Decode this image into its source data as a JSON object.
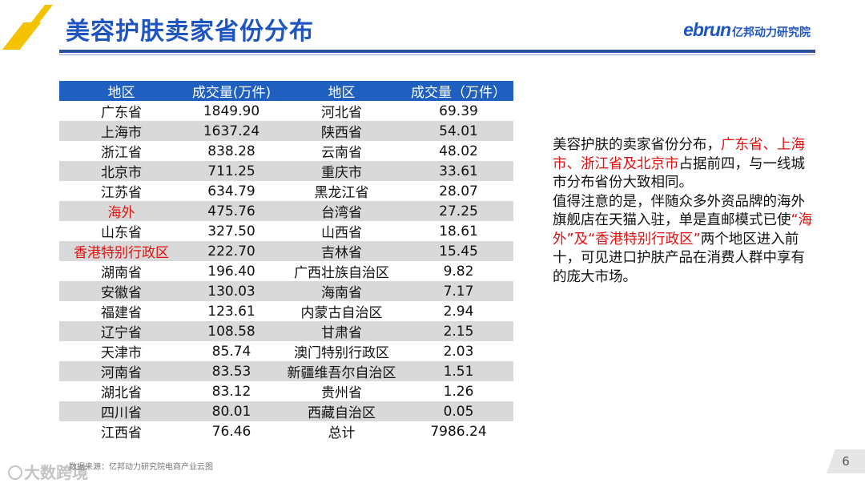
{
  "header": {
    "title": "美容护肤卖家省份分布",
    "logo_brand": "ebrun",
    "logo_cn": "亿邦动力研究院"
  },
  "table": {
    "columns": [
      "地区",
      "成交量(万件)",
      "地区",
      "成交量（万件）"
    ],
    "rows": [
      {
        "region_left": "广东省",
        "value_left": "1849.90",
        "region_right": "河北省",
        "value_right": "69.39"
      },
      {
        "region_left": "上海市",
        "value_left": "1637.24",
        "region_right": "陕西省",
        "value_right": "54.01"
      },
      {
        "region_left": "浙江省",
        "value_left": "838.28",
        "region_right": "云南省",
        "value_right": "48.02"
      },
      {
        "region_left": "北京市",
        "value_left": "711.25",
        "region_right": "重庆市",
        "value_right": "33.61"
      },
      {
        "region_left": "江苏省",
        "value_left": "634.79",
        "region_right": "黑龙江省",
        "value_right": "28.07"
      },
      {
        "region_left": "海外",
        "value_left": "475.76",
        "region_right": "台湾省",
        "value_right": "27.25",
        "highlight_left": true
      },
      {
        "region_left": "山东省",
        "value_left": "327.50",
        "region_right": "山西省",
        "value_right": "18.61"
      },
      {
        "region_left": "香港特别行政区",
        "value_left": "222.70",
        "region_right": "吉林省",
        "value_right": "15.45",
        "highlight_left": true
      },
      {
        "region_left": "湖南省",
        "value_left": "196.40",
        "region_right": "广西壮族自治区",
        "value_right": "9.82"
      },
      {
        "region_left": "安徽省",
        "value_left": "130.03",
        "region_right": "海南省",
        "value_right": "7.17"
      },
      {
        "region_left": "福建省",
        "value_left": "123.61",
        "region_right": "内蒙古自治区",
        "value_right": "2.94"
      },
      {
        "region_left": "辽宁省",
        "value_left": "108.58",
        "region_right": "甘肃省",
        "value_right": "2.15"
      },
      {
        "region_left": "天津市",
        "value_left": "85.74",
        "region_right": "澳门特别行政区",
        "value_right": "2.03"
      },
      {
        "region_left": "河南省",
        "value_left": "83.53",
        "region_right": "新疆维吾尔自治区",
        "value_right": "1.51"
      },
      {
        "region_left": "湖北省",
        "value_left": "83.12",
        "region_right": "贵州省",
        "value_right": "1.26"
      },
      {
        "region_left": "四川省",
        "value_left": "80.01",
        "region_right": "西藏自治区",
        "value_right": "0.05"
      },
      {
        "region_left": "江西省",
        "value_left": "76.46",
        "region_right": "总计",
        "value_right": "7986.24"
      }
    ]
  },
  "description": {
    "p1_a": "美容护肤的卖家省份分布，",
    "p1_hl": "广东省、上海市、浙江省及北京市",
    "p1_b": "占据前四，与一线城市分布省份大致相同。",
    "p2_a": "值得注意的是，伴随众多外资品牌的海外旗舰店在天猫入驻，单是直邮模式已使",
    "p2_hl": "“海外”及“香港特别行政区”",
    "p2_b": "两个地区进入前十，可见进口护肤产品在消费人群中享有的庞大市场。"
  },
  "footer": {
    "source": "数据来源：亿邦动力研究院电商产业云图",
    "watermark": "大数跨境",
    "page_number": "6"
  },
  "colors": {
    "title_blue": "#1f55c0",
    "header_fill": "#1f5fbf",
    "highlight_red": "#e11010",
    "accent_yellow": "#f5c200"
  }
}
